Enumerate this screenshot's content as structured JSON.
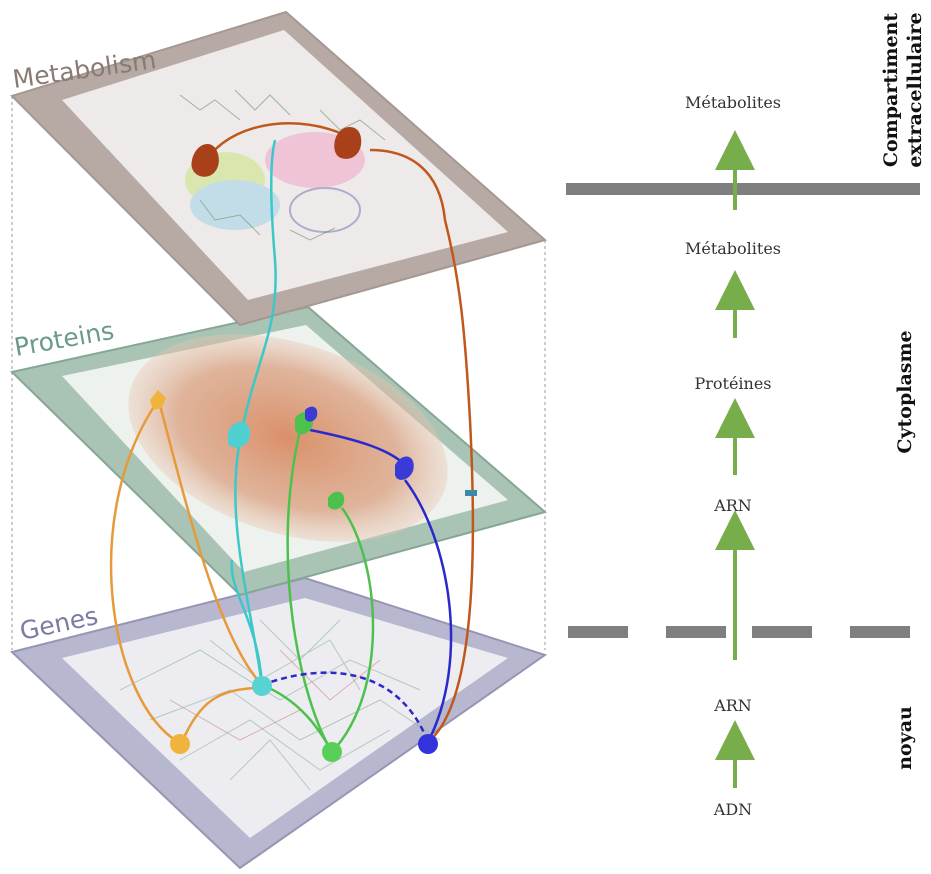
{
  "layers": [
    {
      "id": "metabolism",
      "label": "Metabolism",
      "color": "#8a7a74",
      "edge": "#a59892",
      "fill": "#d9d0cc"
    },
    {
      "id": "proteins",
      "label": "Proteins",
      "color": "#6a9a8a",
      "edge": "#86a696",
      "fill": "#c9d9d0"
    },
    {
      "id": "genes",
      "label": "Genes",
      "color": "#7b7ba6",
      "edge": "#9696b4",
      "fill": "#d6d6e4"
    }
  ],
  "flow": {
    "labels": {
      "metabolites_outside": "Métabolites",
      "metabolites_inside": "Métabolites",
      "proteines": "Protéines",
      "arn_cytoplasm": "ARN",
      "arn_nucleus": "ARN",
      "adn": "ADN"
    },
    "compartments": {
      "extracellular_line1": "Compartiment",
      "extracellular_line2": "extracellulaire",
      "cytoplasm": "Cytoplasme",
      "nucleus": "noyau"
    },
    "colors": {
      "arrow": "#77ad4a",
      "membrane": "#7f7f7f"
    }
  },
  "link_colors": {
    "cyan": "#3cc8c8",
    "orange": "#e69a3a",
    "green": "#4cc24c",
    "blue": "#2a2acc",
    "brown": "#c0581c"
  }
}
